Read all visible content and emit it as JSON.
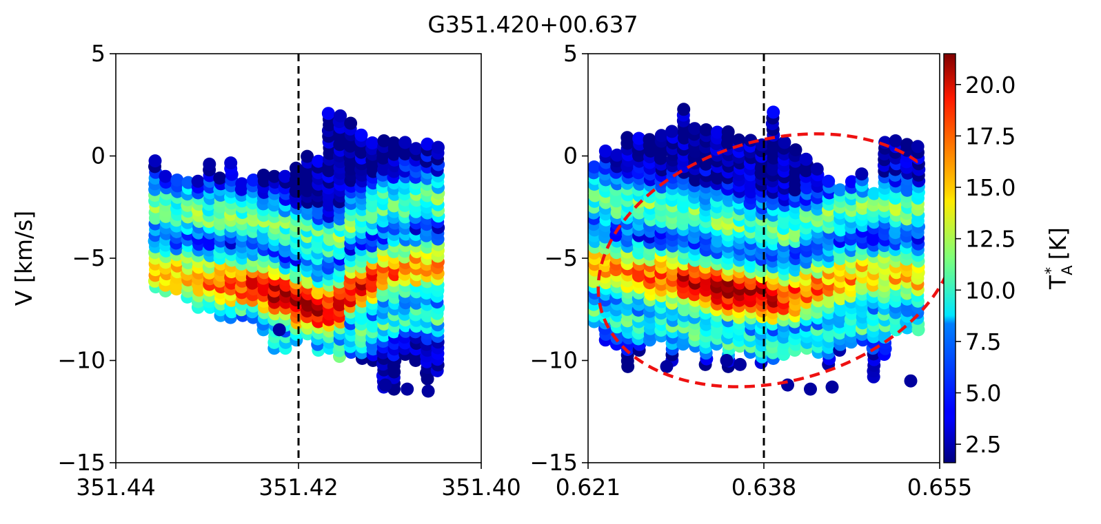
{
  "title": "G351.420+00.637",
  "colors": {
    "reference_line": "#000000",
    "ellipse": "#ee1111",
    "axes": "#000000"
  },
  "colorbar": {
    "label_main": "T",
    "label_sup": "*",
    "label_sub": "A",
    "label_unit": " [K]",
    "range": [
      1.6,
      21.5
    ],
    "ticks": [
      {
        "value": 2.5,
        "label": "2.5"
      },
      {
        "value": 5.0,
        "label": "5.0"
      },
      {
        "value": 7.5,
        "label": "7.5"
      },
      {
        "value": 10.0,
        "label": "10.0"
      },
      {
        "value": 12.5,
        "label": "12.5"
      },
      {
        "value": 15.0,
        "label": "15.0"
      },
      {
        "value": 17.5,
        "label": "17.5"
      },
      {
        "value": 20.0,
        "label": "20.0"
      }
    ]
  },
  "chart_data": [
    {
      "type": "scatter",
      "name": "longitude-velocity",
      "xlabel": "",
      "ylabel": "V [km/s]",
      "xlim": [
        351.44,
        351.4
      ],
      "ylim": [
        -15,
        5
      ],
      "xticks": [
        {
          "value": 351.44,
          "label": "351.44"
        },
        {
          "value": 351.42,
          "label": "351.42"
        },
        {
          "value": 351.4,
          "label": "351.40"
        }
      ],
      "yticks": [
        {
          "value": 5,
          "label": "5"
        },
        {
          "value": 0,
          "label": "0"
        },
        {
          "value": -5,
          "label": "−5"
        },
        {
          "value": -10,
          "label": "−10"
        },
        {
          "value": -15,
          "label": "−15"
        }
      ],
      "vline": 351.42,
      "x_start": 351.4357,
      "x_step": -0.00119,
      "columns": [
        {
          "top": -0.2,
          "bot": -6.4,
          "hot": -5.7
        },
        {
          "top": -0.9,
          "bot": -6.6,
          "hot": -5.7
        },
        {
          "top": -1.0,
          "bot": -6.5,
          "hot": -5.8
        },
        {
          "top": -1.2,
          "bot": -6.9,
          "hot": -5.9
        },
        {
          "top": -1.0,
          "bot": -7.4,
          "hot": -6.0
        },
        {
          "top": -0.4,
          "bot": -7.4,
          "hot": -6.1
        },
        {
          "top": -1.0,
          "bot": -7.8,
          "hot": -6.1
        },
        {
          "top": -0.3,
          "bot": -7.9,
          "hot": -6.2
        },
        {
          "top": -1.1,
          "bot": -7.8,
          "hot": -6.2
        },
        {
          "top": -1.0,
          "bot": -7.9,
          "hot": -6.3
        },
        {
          "top": -0.8,
          "bot": -8.5,
          "hot": -6.4
        },
        {
          "top": -0.8,
          "bot": -9.4,
          "hot": -6.6
        },
        {
          "top": -0.9,
          "bot": -9.4,
          "hot": -6.8
        },
        {
          "top": -0.4,
          "bot": -9.0,
          "hot": -7.1
        },
        {
          "top": 0.0,
          "bot": -8.7,
          "hot": -7.2
        },
        {
          "top": 0.0,
          "bot": -9.5,
          "hot": -7.4
        },
        {
          "top": 2.2,
          "bot": -9.4,
          "hot": -7.6
        },
        {
          "top": 2.2,
          "bot": -9.8,
          "hot": -7.2
        },
        {
          "top": 1.6,
          "bot": -9.6,
          "hot": -6.6
        },
        {
          "top": 1.2,
          "bot": -9.9,
          "hot": -6.3
        },
        {
          "top": 0.9,
          "bot": -10.0,
          "hot": -6.0
        },
        {
          "top": 0.9,
          "bot": -11.3,
          "hot": -5.7
        },
        {
          "top": 0.9,
          "bot": -11.4,
          "hot": -5.6
        },
        {
          "top": 0.8,
          "bot": -9.7,
          "hot": -5.5
        },
        {
          "top": 0.6,
          "bot": -10.0,
          "hot": -5.4
        },
        {
          "top": 0.6,
          "bot": -10.9,
          "hot": -5.4
        },
        {
          "top": 0.6,
          "bot": -10.5,
          "hot": -5.4
        }
      ],
      "extra_points": [
        {
          "x": 351.4221,
          "v": -8.5
        },
        {
          "x": 351.4105,
          "v": -11.2
        },
        {
          "x": 351.4081,
          "v": -11.4
        },
        {
          "x": 351.4058,
          "v": -11.5
        }
      ]
    },
    {
      "type": "scatter",
      "name": "latitude-velocity",
      "xlabel": "",
      "ylabel": "",
      "xlim": [
        0.621,
        0.655
      ],
      "ylim": [
        -15,
        5
      ],
      "xticks": [
        {
          "value": 0.621,
          "label": "0.621"
        },
        {
          "value": 0.638,
          "label": "0.638"
        },
        {
          "value": 0.655,
          "label": "0.655"
        }
      ],
      "yticks": [
        {
          "value": 5,
          "label": "5"
        },
        {
          "value": 0,
          "label": "0"
        },
        {
          "value": -5,
          "label": "−5"
        },
        {
          "value": -10,
          "label": "−10"
        },
        {
          "value": -15,
          "label": "−15"
        }
      ],
      "vline": 0.638,
      "x_start": 0.6216,
      "x_step": 0.00108,
      "columns": [
        {
          "top": -0.5,
          "bot": -8.1,
          "hot": -5.3
        },
        {
          "top": 0.5,
          "bot": -9.0,
          "hot": -5.4
        },
        {
          "top": 0.3,
          "bot": -9.2,
          "hot": -5.5
        },
        {
          "top": 1.0,
          "bot": -10.3,
          "hot": -5.6
        },
        {
          "top": 1.0,
          "bot": -9.5,
          "hot": -5.7
        },
        {
          "top": 1.0,
          "bot": -9.0,
          "hot": -5.8
        },
        {
          "top": 1.2,
          "bot": -8.8,
          "hot": -5.9
        },
        {
          "top": 1.4,
          "bot": -10.0,
          "hot": -6.0
        },
        {
          "top": 2.3,
          "bot": -9.2,
          "hot": -6.1
        },
        {
          "top": 1.5,
          "bot": -9.3,
          "hot": -6.2
        },
        {
          "top": 1.3,
          "bot": -10.2,
          "hot": -6.3
        },
        {
          "top": 1.2,
          "bot": -9.2,
          "hot": -6.4
        },
        {
          "top": 1.3,
          "bot": -10.3,
          "hot": -6.5
        },
        {
          "top": 1.0,
          "bot": -9.3,
          "hot": -6.6
        },
        {
          "top": 0.9,
          "bot": -9.6,
          "hot": -6.7
        },
        {
          "top": 0.6,
          "bot": -10.1,
          "hot": -6.8
        },
        {
          "top": 2.2,
          "bot": -9.9,
          "hot": -6.9
        },
        {
          "top": 0.8,
          "bot": -9.7,
          "hot": -6.9
        },
        {
          "top": 0.3,
          "bot": -9.5,
          "hot": -6.8
        },
        {
          "top": 0.0,
          "bot": -9.4,
          "hot": -6.6
        },
        {
          "top": -0.4,
          "bot": -9.6,
          "hot": -6.4
        },
        {
          "top": -1.0,
          "bot": -10.2,
          "hot": -6.2
        },
        {
          "top": -1.4,
          "bot": -9.5,
          "hot": -6.0
        },
        {
          "top": -1.0,
          "bot": -9.1,
          "hot": -5.9
        },
        {
          "top": -0.7,
          "bot": -9.0,
          "hot": -5.8
        },
        {
          "top": -1.6,
          "bot": -10.8,
          "hot": -5.8
        },
        {
          "top": 0.8,
          "bot": -9.7,
          "hot": -5.7
        },
        {
          "top": 0.8,
          "bot": -8.5,
          "hot": -5.8
        },
        {
          "top": 0.7,
          "bot": -8.4,
          "hot": -5.9
        },
        {
          "top": 0.6,
          "bot": -8.5,
          "hot": -6.0
        }
      ],
      "extra_points": [
        {
          "x": 0.6286,
          "v": -10.3
        },
        {
          "x": 0.6344,
          "v": -10.0
        },
        {
          "x": 0.6357,
          "v": -10.2
        },
        {
          "x": 0.6403,
          "v": -11.2
        },
        {
          "x": 0.6425,
          "v": -11.4
        },
        {
          "x": 0.6446,
          "v": -11.3
        },
        {
          "x": 0.6522,
          "v": -11.0
        }
      ],
      "ellipse": {
        "center_x": 0.6393,
        "center_v": -5.1,
        "semi_x": 0.0177,
        "semi_v": 5.9,
        "rotation_deg": -16
      }
    }
  ]
}
